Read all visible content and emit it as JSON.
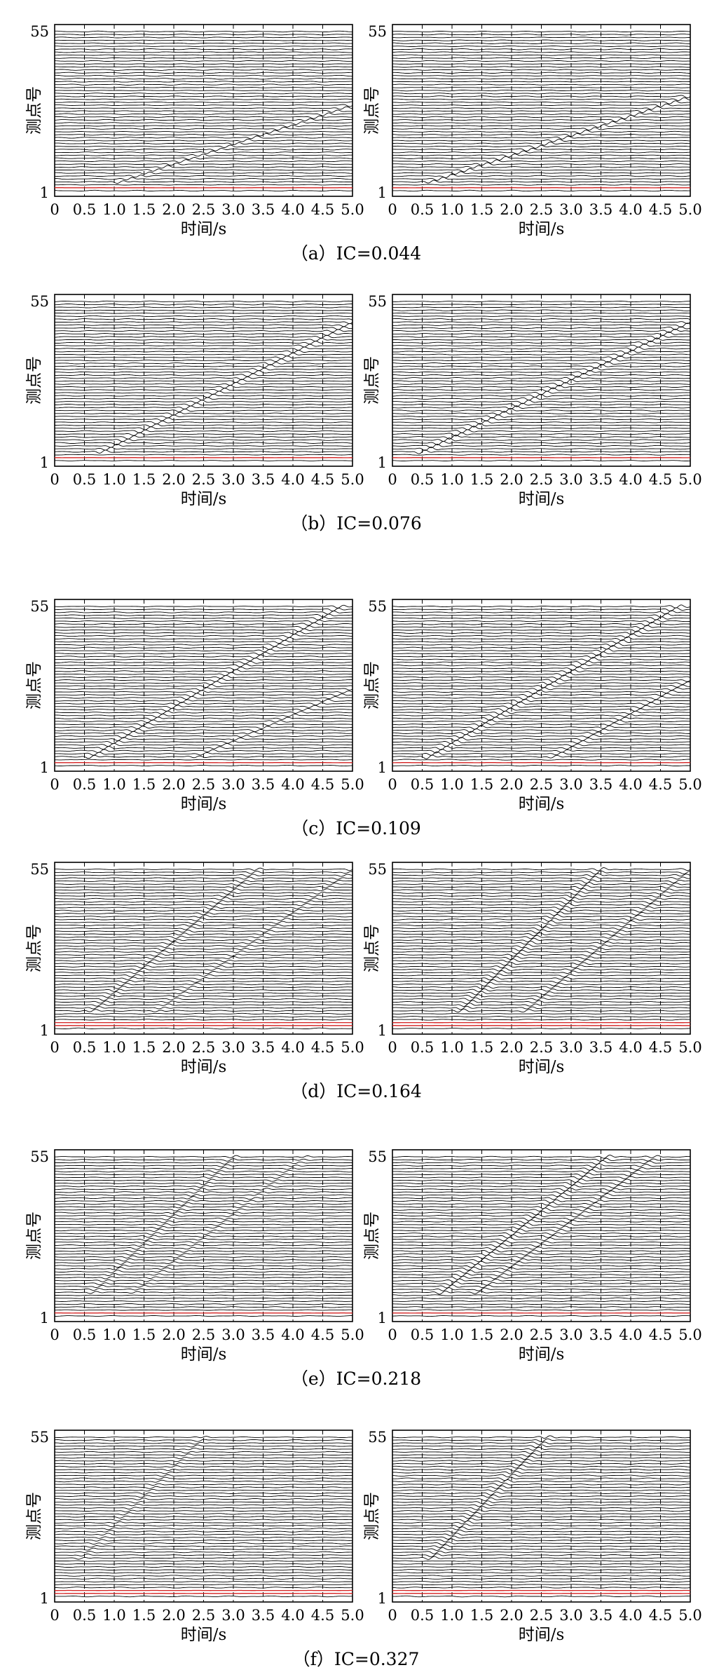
{
  "figure": {
    "panels": [
      {
        "caption": "（a）IC=0.044"
      },
      {
        "caption": "（b）IC=0.076"
      },
      {
        "caption": "（c）IC=0.109"
      },
      {
        "caption": "（d）IC=0.164"
      },
      {
        "caption": "（e）IC=0.218"
      },
      {
        "caption": "（f）IC=0.327"
      }
    ]
  },
  "colors": {
    "trace": "#000000",
    "highlight": "#d42020",
    "background": "#ffffff"
  },
  "chart_data": [
    {
      "panel": "a",
      "side": "left",
      "type": "line",
      "xlabel": "时间/s",
      "ylabel": "测点号",
      "xlim": [
        0,
        5.0
      ],
      "yticks": [
        "55",
        "1"
      ],
      "xticks": [
        "0",
        "0.5",
        "1.0",
        "1.5",
        "2.0",
        "2.5",
        "3.0",
        "3.5",
        "4.0",
        "4.5",
        "5.0"
      ],
      "grid_x": "dashed",
      "wave_front": {
        "points": [
          [
            1.25,
            5
          ],
          [
            5.0,
            30
          ]
        ]
      },
      "wave_amplitude": 0.9,
      "secondary_front": null
    },
    {
      "panel": "a",
      "side": "right",
      "type": "line",
      "xlabel": "时间/s",
      "ylabel": "测点号",
      "xlim": [
        0,
        5.0
      ],
      "yticks": [
        "55",
        "1"
      ],
      "xticks": [
        "0",
        "0.5",
        "1.0",
        "1.5",
        "2.0",
        "2.5",
        "3.0",
        "3.5",
        "4.0",
        "4.5",
        "5.0"
      ],
      "grid_x": "dashed",
      "wave_front": {
        "points": [
          [
            0.8,
            5
          ],
          [
            5.0,
            33
          ]
        ]
      },
      "wave_amplitude": 1.1,
      "secondary_front": null
    },
    {
      "panel": "b",
      "side": "left",
      "type": "line",
      "xlabel": "时间/s",
      "ylabel": "测点号",
      "xlim": [
        0,
        5.0
      ],
      "yticks": [
        "55",
        "1"
      ],
      "xticks": [
        "0",
        "0.5",
        "1.0",
        "1.5",
        "2.0",
        "2.5",
        "3.0",
        "3.5",
        "4.0",
        "4.5",
        "5.0"
      ],
      "grid_x": "dashed",
      "wave_front": {
        "points": [
          [
            0.9,
            5
          ],
          [
            5.0,
            48
          ]
        ]
      },
      "wave_amplitude": 1.1,
      "secondary_front": null
    },
    {
      "panel": "b",
      "side": "right",
      "type": "line",
      "xlabel": "时间/s",
      "ylabel": "测点号",
      "xlim": [
        0,
        5.0
      ],
      "yticks": [
        "55",
        "1"
      ],
      "xticks": [
        "0",
        "0.5",
        "1.0",
        "1.5",
        "2.0",
        "2.5",
        "3.0",
        "3.5",
        "4.0",
        "4.5",
        "5.0"
      ],
      "grid_x": "dashed",
      "wave_front": {
        "points": [
          [
            0.6,
            5
          ],
          [
            5.0,
            48
          ]
        ]
      },
      "wave_amplitude": 1.3,
      "secondary_front": null
    },
    {
      "panel": "c",
      "side": "left",
      "type": "line",
      "xlabel": "时间/s",
      "ylabel": "测点号",
      "xlim": [
        0,
        5.0
      ],
      "yticks": [
        "55",
        "1"
      ],
      "xticks": [
        "0",
        "0.5",
        "1.0",
        "1.5",
        "2.0",
        "2.5",
        "3.0",
        "3.5",
        "4.0",
        "4.5",
        "5.0"
      ],
      "grid_x": "dashed",
      "wave_front": {
        "points": [
          [
            0.7,
            5
          ],
          [
            4.8,
            55
          ]
        ]
      },
      "wave_amplitude": 1.1,
      "secondary_front": {
        "points": [
          [
            2.5,
            5
          ],
          [
            5.0,
            27
          ]
        ]
      }
    },
    {
      "panel": "c",
      "side": "right",
      "type": "line",
      "xlabel": "时间/s",
      "ylabel": "测点号",
      "xlim": [
        0,
        5.0
      ],
      "yticks": [
        "55",
        "1"
      ],
      "xticks": [
        "0",
        "0.5",
        "1.0",
        "1.5",
        "2.0",
        "2.5",
        "3.0",
        "3.5",
        "4.0",
        "4.5",
        "5.0"
      ],
      "grid_x": "dashed",
      "wave_front": {
        "points": [
          [
            0.7,
            5
          ],
          [
            4.8,
            55
          ]
        ]
      },
      "wave_amplitude": 1.3,
      "secondary_front": {
        "points": [
          [
            2.8,
            5
          ],
          [
            5.0,
            30
          ]
        ]
      }
    },
    {
      "panel": "d",
      "side": "left",
      "type": "line",
      "xlabel": "时间/s",
      "ylabel": "测点号",
      "xlim": [
        0,
        5.0
      ],
      "yticks": [
        "55",
        "1"
      ],
      "xticks": [
        "0",
        "0.5",
        "1.0",
        "1.5",
        "2.0",
        "2.5",
        "3.0",
        "3.5",
        "4.0",
        "4.5",
        "5.0"
      ],
      "grid_x": "dashed",
      "wave_front": {
        "points": [
          [
            0.7,
            8
          ],
          [
            3.4,
            55
          ]
        ]
      },
      "wave_amplitude": 0.9,
      "secondary_front": {
        "points": [
          [
            1.8,
            8
          ],
          [
            5.0,
            55
          ]
        ]
      }
    },
    {
      "panel": "d",
      "side": "right",
      "type": "line",
      "xlabel": "时间/s",
      "ylabel": "测点号",
      "xlim": [
        0,
        5.0
      ],
      "yticks": [
        "55",
        "1"
      ],
      "xticks": [
        "0",
        "0.5",
        "1.0",
        "1.5",
        "2.0",
        "2.5",
        "3.0",
        "3.5",
        "4.0",
        "4.5",
        "5.0"
      ],
      "grid_x": "dashed",
      "wave_front": {
        "points": [
          [
            1.2,
            8
          ],
          [
            3.5,
            55
          ]
        ]
      },
      "wave_amplitude": 1.2,
      "secondary_front": {
        "points": [
          [
            2.3,
            8
          ],
          [
            5.0,
            55
          ]
        ]
      }
    },
    {
      "panel": "e",
      "side": "left",
      "type": "line",
      "xlabel": "时间/s",
      "ylabel": "测点号",
      "xlim": [
        0,
        5.0
      ],
      "yticks": [
        "55",
        "1"
      ],
      "xticks": [
        "0",
        "0.5",
        "1.0",
        "1.5",
        "2.0",
        "2.5",
        "3.0",
        "3.5",
        "4.0",
        "4.5",
        "5.0"
      ],
      "grid_x": "dashed",
      "wave_front": {
        "points": [
          [
            0.7,
            10
          ],
          [
            3.0,
            55
          ]
        ]
      },
      "wave_amplitude": 0.8,
      "secondary_front": {
        "points": [
          [
            1.4,
            10
          ],
          [
            4.2,
            55
          ]
        ]
      }
    },
    {
      "panel": "e",
      "side": "right",
      "type": "line",
      "xlabel": "时间/s",
      "ylabel": "测点号",
      "xlim": [
        0,
        5.0
      ],
      "yticks": [
        "55",
        "1"
      ],
      "xticks": [
        "0",
        "0.5",
        "1.0",
        "1.5",
        "2.0",
        "2.5",
        "3.0",
        "3.5",
        "4.0",
        "4.5",
        "5.0"
      ],
      "grid_x": "dashed",
      "wave_front": {
        "points": [
          [
            0.9,
            10
          ],
          [
            3.6,
            55
          ]
        ]
      },
      "wave_amplitude": 1.2,
      "secondary_front": {
        "points": [
          [
            1.5,
            10
          ],
          [
            4.4,
            55
          ]
        ]
      }
    },
    {
      "panel": "f",
      "side": "left",
      "type": "line",
      "xlabel": "时间/s",
      "ylabel": "测点号",
      "xlim": [
        0,
        5.0
      ],
      "yticks": [
        "55",
        "1"
      ],
      "xticks": [
        "0",
        "0.5",
        "1.0",
        "1.5",
        "2.0",
        "2.5",
        "3.0",
        "3.5",
        "4.0",
        "4.5",
        "5.0"
      ],
      "grid_x": "dashed",
      "wave_front": {
        "points": [
          [
            0.5,
            15
          ],
          [
            2.5,
            55
          ]
        ]
      },
      "wave_amplitude": 0.6,
      "secondary_front": null
    },
    {
      "panel": "f",
      "side": "right",
      "type": "line",
      "xlabel": "时间/s",
      "ylabel": "测点号",
      "xlim": [
        0,
        5.0
      ],
      "yticks": [
        "55",
        "1"
      ],
      "xticks": [
        "0",
        "0.5",
        "1.0",
        "1.5",
        "2.0",
        "2.5",
        "3.0",
        "3.5",
        "4.0",
        "4.5",
        "5.0"
      ],
      "grid_x": "dashed",
      "wave_front": {
        "points": [
          [
            0.7,
            15
          ],
          [
            2.6,
            55
          ]
        ]
      },
      "wave_amplitude": 1.1,
      "secondary_front": null
    }
  ]
}
